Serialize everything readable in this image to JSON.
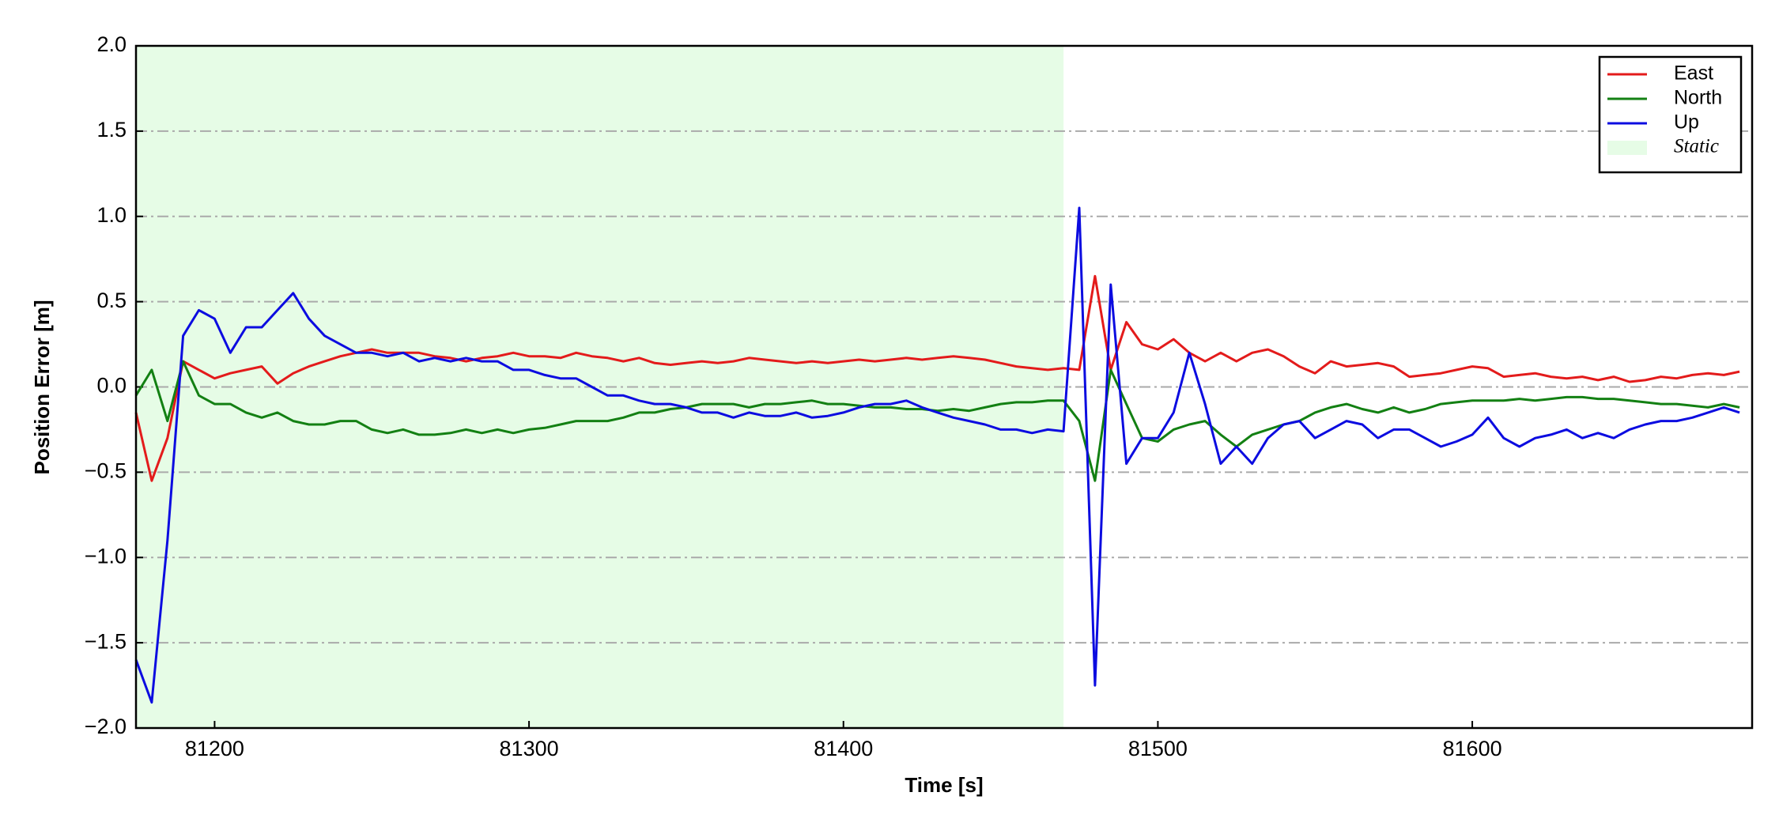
{
  "chart_data": {
    "type": "line",
    "xlabel": "Time [s]",
    "ylabel": "Position Error [m]",
    "xlim": [
      81175,
      81689
    ],
    "ylim": [
      -2,
      2
    ],
    "xticks": [
      81200,
      81300,
      81400,
      81500,
      81600
    ],
    "yticks": [
      {
        "value": -2,
        "label": "−2.0"
      },
      {
        "value": -1.5,
        "label": "−1.5"
      },
      {
        "value": -1,
        "label": "−1.0"
      },
      {
        "value": -0.5,
        "label": "−0.5"
      },
      {
        "value": 0,
        "label": "0.0"
      },
      {
        "value": 0.5,
        "label": "0.5"
      },
      {
        "value": 1,
        "label": "1.0"
      },
      {
        "value": 1.5,
        "label": "1.5"
      },
      {
        "value": 2,
        "label": "2.0"
      }
    ],
    "grid": true,
    "legend": "upper right",
    "span": {
      "name": "Static",
      "range": [
        81175,
        81470
      ],
      "color": "#e6fce6"
    },
    "x": [
      81175,
      81180,
      81185,
      81190,
      81195,
      81200,
      81205,
      81210,
      81215,
      81220,
      81225,
      81230,
      81235,
      81240,
      81245,
      81250,
      81255,
      81260,
      81265,
      81270,
      81275,
      81280,
      81285,
      81290,
      81295,
      81300,
      81305,
      81310,
      81315,
      81320,
      81325,
      81330,
      81335,
      81340,
      81345,
      81350,
      81355,
      81360,
      81365,
      81370,
      81375,
      81380,
      81385,
      81390,
      81395,
      81400,
      81405,
      81410,
      81415,
      81420,
      81425,
      81430,
      81435,
      81440,
      81445,
      81450,
      81455,
      81460,
      81465,
      81470,
      81475,
      81480,
      81485,
      81490,
      81495,
      81500,
      81505,
      81510,
      81515,
      81520,
      81525,
      81530,
      81535,
      81540,
      81545,
      81550,
      81555,
      81560,
      81565,
      81570,
      81575,
      81580,
      81585,
      81590,
      81595,
      81600,
      81605,
      81610,
      81615,
      81620,
      81625,
      81630,
      81635,
      81640,
      81645,
      81650,
      81655,
      81660,
      81665,
      81670,
      81675,
      81680,
      81685
    ],
    "series": [
      {
        "name": "East",
        "color": "#e31b1b",
        "values": [
          -0.15,
          -0.55,
          -0.3,
          0.15,
          0.1,
          0.05,
          0.08,
          0.1,
          0.12,
          0.02,
          0.08,
          0.12,
          0.15,
          0.18,
          0.2,
          0.22,
          0.2,
          0.2,
          0.2,
          0.18,
          0.17,
          0.15,
          0.17,
          0.18,
          0.2,
          0.18,
          0.18,
          0.17,
          0.2,
          0.18,
          0.17,
          0.15,
          0.17,
          0.14,
          0.13,
          0.14,
          0.15,
          0.14,
          0.15,
          0.17,
          0.16,
          0.15,
          0.14,
          0.15,
          0.14,
          0.15,
          0.16,
          0.15,
          0.16,
          0.17,
          0.16,
          0.17,
          0.18,
          0.17,
          0.16,
          0.14,
          0.12,
          0.11,
          0.1,
          0.11,
          0.1,
          0.65,
          0.1,
          0.38,
          0.25,
          0.22,
          0.28,
          0.2,
          0.15,
          0.2,
          0.15,
          0.2,
          0.22,
          0.18,
          0.12,
          0.08,
          0.15,
          0.12,
          0.13,
          0.14,
          0.12,
          0.06,
          0.07,
          0.08,
          0.1,
          0.12,
          0.11,
          0.06,
          0.07,
          0.08,
          0.06,
          0.05,
          0.06,
          0.04,
          0.06,
          0.03,
          0.04,
          0.06,
          0.05,
          0.07,
          0.08,
          0.07,
          0.09
        ]
      },
      {
        "name": "North",
        "color": "#138013",
        "values": [
          -0.05,
          0.1,
          -0.2,
          0.15,
          -0.05,
          -0.1,
          -0.1,
          -0.15,
          -0.18,
          -0.15,
          -0.2,
          -0.22,
          -0.22,
          -0.2,
          -0.2,
          -0.25,
          -0.27,
          -0.25,
          -0.28,
          -0.28,
          -0.27,
          -0.25,
          -0.27,
          -0.25,
          -0.27,
          -0.25,
          -0.24,
          -0.22,
          -0.2,
          -0.2,
          -0.2,
          -0.18,
          -0.15,
          -0.15,
          -0.13,
          -0.12,
          -0.1,
          -0.1,
          -0.1,
          -0.12,
          -0.1,
          -0.1,
          -0.09,
          -0.08,
          -0.1,
          -0.1,
          -0.11,
          -0.12,
          -0.12,
          -0.13,
          -0.13,
          -0.14,
          -0.13,
          -0.14,
          -0.12,
          -0.1,
          -0.09,
          -0.09,
          -0.08,
          -0.08,
          -0.2,
          -0.55,
          0.1,
          -0.1,
          -0.3,
          -0.32,
          -0.25,
          -0.22,
          -0.2,
          -0.28,
          -0.35,
          -0.28,
          -0.25,
          -0.22,
          -0.2,
          -0.15,
          -0.12,
          -0.1,
          -0.13,
          -0.15,
          -0.12,
          -0.15,
          -0.13,
          -0.1,
          -0.09,
          -0.08,
          -0.08,
          -0.08,
          -0.07,
          -0.08,
          -0.07,
          -0.06,
          -0.06,
          -0.07,
          -0.07,
          -0.08,
          -0.09,
          -0.1,
          -0.1,
          -0.11,
          -0.12,
          -0.1,
          -0.12
        ]
      },
      {
        "name": "Up",
        "color": "#0c0ce0",
        "values": [
          -1.6,
          -1.85,
          -0.9,
          0.3,
          0.45,
          0.4,
          0.2,
          0.35,
          0.35,
          0.45,
          0.55,
          0.4,
          0.3,
          0.25,
          0.2,
          0.2,
          0.18,
          0.2,
          0.15,
          0.17,
          0.15,
          0.17,
          0.15,
          0.15,
          0.1,
          0.1,
          0.07,
          0.05,
          0.05,
          0.0,
          -0.05,
          -0.05,
          -0.08,
          -0.1,
          -0.1,
          -0.12,
          -0.15,
          -0.15,
          -0.18,
          -0.15,
          -0.17,
          -0.17,
          -0.15,
          -0.18,
          -0.17,
          -0.15,
          -0.12,
          -0.1,
          -0.1,
          -0.08,
          -0.12,
          -0.15,
          -0.18,
          -0.2,
          -0.22,
          -0.25,
          -0.25,
          -0.27,
          -0.25,
          -0.26,
          1.05,
          -1.75,
          0.6,
          -0.45,
          -0.3,
          -0.3,
          -0.15,
          0.2,
          -0.1,
          -0.45,
          -0.35,
          -0.45,
          -0.3,
          -0.22,
          -0.2,
          -0.3,
          -0.25,
          -0.2,
          -0.22,
          -0.3,
          -0.25,
          -0.25,
          -0.3,
          -0.35,
          -0.32,
          -0.28,
          -0.18,
          -0.3,
          -0.35,
          -0.3,
          -0.28,
          -0.25,
          -0.3,
          -0.27,
          -0.3,
          -0.25,
          -0.22,
          -0.2,
          -0.2,
          -0.18,
          -0.15,
          -0.12,
          -0.15
        ]
      }
    ]
  }
}
